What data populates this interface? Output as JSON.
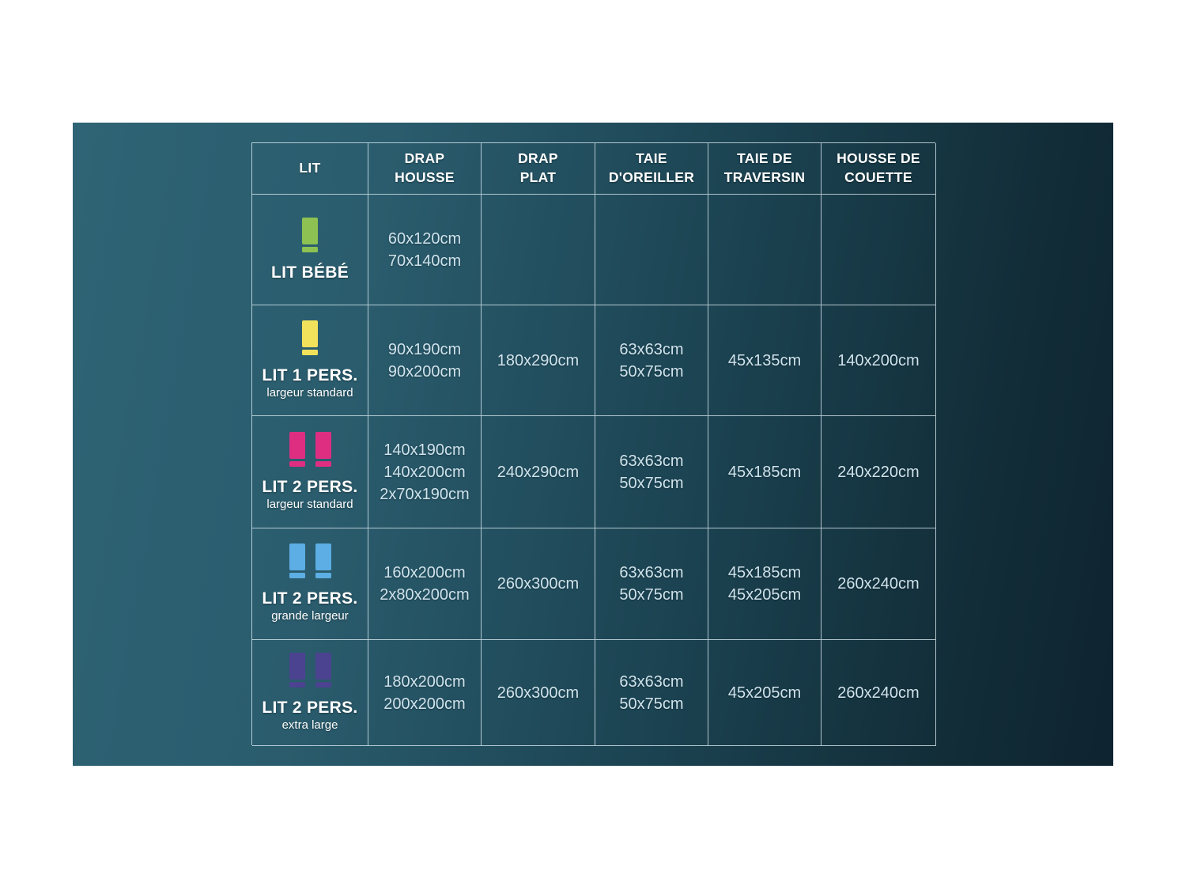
{
  "panel": {
    "bg_left": "#2e6475",
    "bg_right": "#0e2430",
    "border_color": "#dbebf1"
  },
  "table": {
    "headers": [
      "LIT",
      "DRAP\nHOUSSE",
      "DRAP\nPLAT",
      "TAIE\nD'OREILLER",
      "TAIE DE\nTRAVERSIN",
      "HOUSSE DE\nCOUETTE"
    ],
    "rows": [
      {
        "label": "LIT BÉBÉ",
        "sublabel": "",
        "icon_color": "#8dc152",
        "cells": [
          "60x120cm\n70x140cm",
          "",
          "",
          "",
          ""
        ]
      },
      {
        "label": "LIT 1 PERS.",
        "sublabel": "largeur standard",
        "icon_color": "#f2e15b",
        "cells": [
          "90x190cm\n90x200cm",
          "180x290cm",
          "63x63cm\n50x75cm",
          "45x135cm",
          "140x200cm"
        ]
      },
      {
        "label": "LIT 2 PERS.",
        "sublabel": "largeur standard",
        "icon_color": "#dd2e82",
        "cells": [
          "140x190cm\n140x200cm\n2x70x190cm",
          "240x290cm",
          "63x63cm\n50x75cm",
          "45x185cm",
          "240x220cm"
        ]
      },
      {
        "label": "LIT 2 PERS.",
        "sublabel": "grande largeur",
        "icon_color": "#5caee4",
        "cells": [
          "160x200cm\n2x80x200cm",
          "260x300cm",
          "63x63cm\n50x75cm",
          "45x185cm\n45x205cm",
          "260x240cm"
        ]
      },
      {
        "label": "LIT 2 PERS.",
        "sublabel": "extra large",
        "icon_color": "#4b4390",
        "cells": [
          "180x200cm\n200x200cm",
          "260x300cm",
          "63x63cm\n50x75cm",
          "45x205cm",
          "260x240cm"
        ]
      }
    ]
  }
}
